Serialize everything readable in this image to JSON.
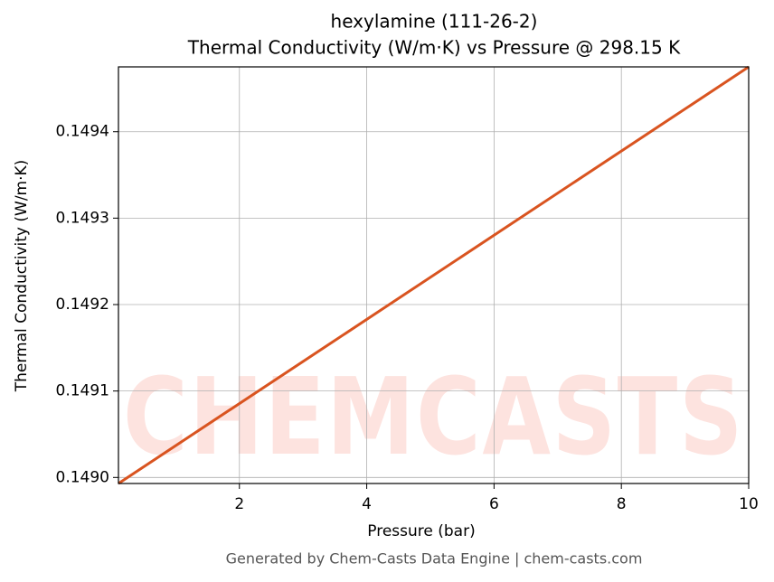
{
  "chart_data": {
    "type": "line",
    "title": "hexylamine (111-26-2)",
    "subtitle": "Thermal Conductivity (W/m·K) vs Pressure @ 298.15 K",
    "x_label": "Pressure (bar)",
    "y_label": "Thermal Conductivity (W/m·K)",
    "footer": "Generated by Chem-Casts Data Engine | chem-casts.com",
    "watermark": "CHEMCASTS",
    "x": [
      0.1,
      10
    ],
    "series": [
      {
        "name": "Thermal Conductivity",
        "color": "#d95420",
        "values": [
          0.148993,
          0.149475
        ]
      }
    ],
    "xlim": [
      0.1,
      10
    ],
    "ylim": [
      0.148993,
      0.149475
    ],
    "xticks": [
      2,
      4,
      6,
      8,
      10
    ],
    "yticks": [
      {
        "value": 0.149,
        "label": "0.1490"
      },
      0.1491,
      0.1492,
      0.1493,
      0.1494
    ],
    "grid": true
  }
}
